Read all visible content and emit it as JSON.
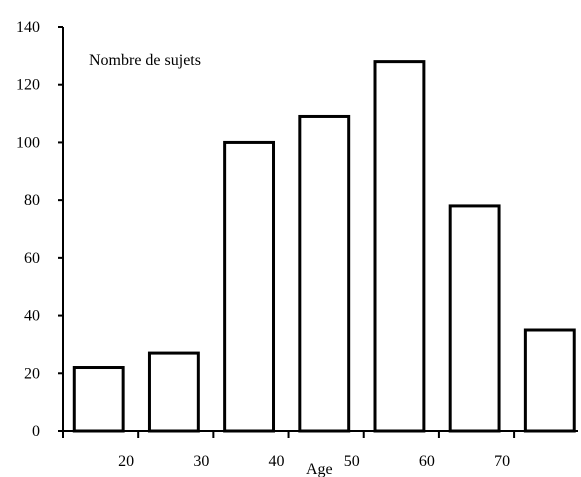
{
  "chart_data": {
    "type": "bar",
    "title": "",
    "ylabel": "Nombre de sujets",
    "xlabel": "Age",
    "ylim": [
      0,
      140
    ],
    "yticks": [
      0,
      20,
      40,
      60,
      80,
      100,
      120,
      140
    ],
    "xlim": [
      10,
      78.5
    ],
    "xticks": [
      20,
      30,
      40,
      50,
      60,
      70
    ],
    "bin_edges": [
      [
        11.5,
        18
      ],
      [
        21.5,
        28
      ],
      [
        31.5,
        38
      ],
      [
        41.5,
        48
      ],
      [
        51.5,
        58
      ],
      [
        61.5,
        68
      ],
      [
        71.5,
        78
      ]
    ],
    "values": [
      22,
      27,
      100,
      109,
      128,
      78,
      35
    ],
    "bar_fill": "#ffffff",
    "bar_stroke": "#000000",
    "grid": false,
    "legend": "none"
  }
}
